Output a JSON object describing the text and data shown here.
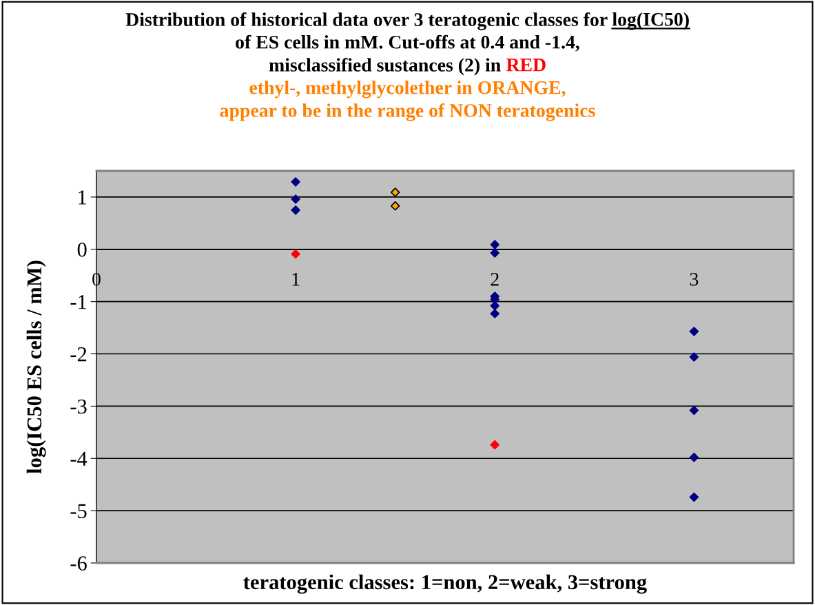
{
  "chart_data": {
    "type": "scatter",
    "title": "Distribution of historical data over 3 teratogenic classes for log(IC50)\nof ES cells in mM. Cut-offs at 0.4 and -1.4,\nmisclassified sustances (2) in RED",
    "subtitle": "ethyl-, methylglycolether in ORANGE,\nappear to be in the range of NON teratogenics",
    "xlabel": "teratogenic classes: 1=non, 2=weak, 3=strong",
    "ylabel": "log(IC50 ES cells / mM)",
    "series": [
      {
        "color": "#000080",
        "x": [
          1,
          1,
          1,
          2,
          2,
          2,
          2,
          2,
          2,
          3,
          3,
          3,
          3,
          3
        ],
        "values": [
          1.29,
          0.96,
          0.75,
          0.09,
          -0.07,
          -0.9,
          -0.96,
          -1.08,
          -1.23,
          -1.57,
          -2.06,
          -3.08,
          -3.98,
          -4.74
        ]
      },
      {
        "color": "#ff0000",
        "x": [
          1,
          2
        ],
        "values": [
          -0.09,
          -3.74
        ]
      },
      {
        "color": "#ffa500",
        "x": [
          1.5,
          1.5
        ],
        "values": [
          1.09,
          0.83
        ]
      }
    ],
    "xlim": [
      0,
      3.5
    ],
    "xticks": [
      0,
      1,
      2,
      3
    ],
    "ylim": [
      -6,
      1.5
    ],
    "yticks": [
      -6,
      -5,
      -4,
      -3,
      -2,
      -1,
      0,
      1
    ],
    "grid": "y",
    "marker": "diamond",
    "legend": false
  }
}
